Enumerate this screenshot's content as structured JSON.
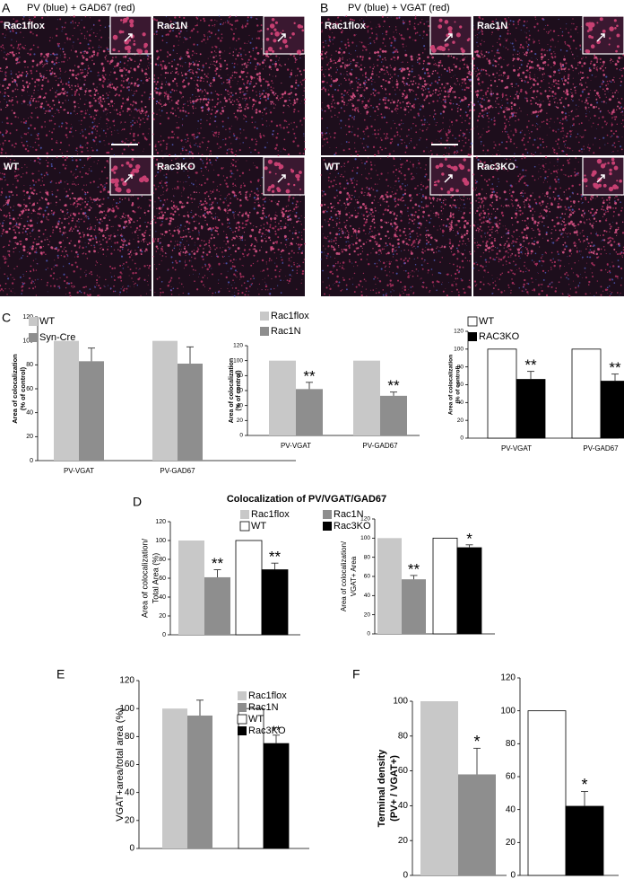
{
  "figure": {
    "panel_labels": [
      "A",
      "B",
      "C",
      "D",
      "E",
      "F"
    ],
    "image_panels": [
      {
        "title": "PV (blue) + GAD67 (red)",
        "labels": [
          "Rac1flox",
          "Rac1N",
          "WT",
          "Rac3KO"
        ]
      },
      {
        "title": "PV (blue) + VGAT (red)",
        "labels": [
          "Rac1flox",
          "Rac1N",
          "WT",
          "Rac3KO"
        ]
      }
    ],
    "section_title": "Colocalization of PV/VGAT/GAD67"
  },
  "chart_data": [
    {
      "type": "bar",
      "ylabel": [
        "Area of colocalization",
        "(% of control)"
      ],
      "categories": [
        "PV-VGAT",
        "PV-GAD67"
      ],
      "series": [
        {
          "name": "WT",
          "color": "#c8c8c8",
          "values": [
            100,
            100
          ]
        },
        {
          "name": "Syn-Cre",
          "color": "#8e8e8e",
          "values": [
            83,
            81
          ],
          "errors": [
            11,
            14
          ]
        }
      ],
      "ylim": [
        0,
        120
      ],
      "yticks": [
        0,
        20,
        40,
        60,
        80,
        100,
        120
      ]
    },
    {
      "type": "bar",
      "ylabel": [
        "Area of colocalization",
        "(% of control)"
      ],
      "categories": [
        "PV-VGAT",
        "PV-GAD67"
      ],
      "series": [
        {
          "name": "Rac1flox",
          "color": "#c8c8c8",
          "values": [
            100,
            100
          ]
        },
        {
          "name": "Rac1N",
          "color": "#8e8e8e",
          "values": [
            62,
            53
          ],
          "errors": [
            9,
            5
          ],
          "significance": [
            "**",
            "**"
          ]
        }
      ],
      "ylim": [
        0,
        120
      ],
      "yticks": [
        0,
        20,
        40,
        60,
        80,
        100,
        120
      ]
    },
    {
      "type": "bar",
      "ylabel": [
        "Area of colocalization",
        "(% of control)"
      ],
      "categories": [
        "PV-VGAT",
        "PV-GAD67"
      ],
      "series": [
        {
          "name": "WT",
          "color": "#ffffff",
          "values": [
            100,
            100
          ]
        },
        {
          "name": "RAC3KO",
          "color": "#000000",
          "values": [
            66,
            64
          ],
          "errors": [
            9,
            8
          ],
          "significance": [
            "**",
            "**"
          ]
        }
      ],
      "ylim": [
        0,
        120
      ],
      "yticks": [
        0,
        20,
        40,
        60,
        80,
        100,
        120
      ]
    },
    {
      "type": "bar",
      "ylabel": [
        "Area of colocalization/",
        "Total Area (%)"
      ],
      "categories": [
        null,
        null
      ],
      "series": [
        {
          "name": "Rac1flox",
          "color": "#c8c8c8",
          "values": [
            100,
            null
          ]
        },
        {
          "name": "WT",
          "color": "#ffffff",
          "values": [
            null,
            100
          ]
        },
        {
          "name": "Rac1N",
          "color": "#8e8e8e",
          "values": [
            61,
            null
          ],
          "errors": [
            8,
            null
          ],
          "significance": [
            "**",
            null
          ]
        },
        {
          "name": "Rac3KO",
          "color": "#000000",
          "values": [
            null,
            69
          ],
          "errors": [
            null,
            7
          ],
          "significance": [
            null,
            "**"
          ]
        }
      ],
      "order": [
        0,
        2,
        1,
        3
      ],
      "ylim": [
        0,
        120
      ],
      "yticks": [
        0,
        20,
        40,
        60,
        80,
        100,
        120
      ]
    },
    {
      "type": "bar",
      "ylabel": [
        "Area of colocalization/",
        "VGAT+ Area"
      ],
      "categories": [
        null,
        null
      ],
      "series": [
        {
          "color": "#c8c8c8",
          "values": [
            100,
            null
          ]
        },
        {
          "color": "#8e8e8e",
          "values": [
            57,
            null
          ],
          "errors": [
            4,
            null
          ],
          "significance": [
            "**",
            null
          ]
        },
        {
          "color": "#ffffff",
          "values": [
            null,
            100
          ]
        },
        {
          "color": "#000000",
          "values": [
            null,
            90
          ],
          "errors": [
            null,
            3
          ],
          "significance": [
            null,
            "*"
          ]
        }
      ],
      "ylim": [
        0,
        120
      ],
      "yticks": [
        0,
        20,
        40,
        60,
        80,
        100,
        120
      ]
    },
    {
      "type": "bar",
      "ylabel": [
        "VGAT+area/total area (%)"
      ],
      "categories": [
        null,
        null
      ],
      "series": [
        {
          "name": "Rac1flox",
          "color": "#c8c8c8",
          "values": [
            100,
            null
          ]
        },
        {
          "name": "Rac1N",
          "color": "#8e8e8e",
          "values": [
            95,
            null
          ],
          "errors": [
            11,
            null
          ]
        },
        {
          "name": "WT",
          "color": "#ffffff",
          "values": [
            null,
            100
          ]
        },
        {
          "name": "Rac3KO",
          "color": "#000000",
          "values": [
            null,
            75
          ],
          "errors": [
            null,
            6
          ],
          "significance": [
            null,
            "**"
          ]
        }
      ],
      "ylim": [
        0,
        120
      ],
      "yticks": [
        0,
        20,
        40,
        60,
        80,
        100,
        120
      ]
    },
    {
      "type": "bar",
      "ylabel": [
        "Terminal density",
        "(PV+ / VGAT+)"
      ],
      "categories": [
        null
      ],
      "series": [
        {
          "color": "#c8c8c8",
          "values": [
            100
          ]
        },
        {
          "color": "#8e8e8e",
          "values": [
            58
          ],
          "errors": [
            15
          ],
          "significance": [
            "*"
          ]
        }
      ],
      "ylim": [
        0,
        100
      ],
      "yticks": [
        0,
        20,
        40,
        60,
        80,
        100
      ]
    },
    {
      "type": "bar",
      "categories": [
        null
      ],
      "series": [
        {
          "color": "#ffffff",
          "values": [
            100
          ]
        },
        {
          "color": "#000000",
          "values": [
            42
          ],
          "errors": [
            9
          ],
          "significance": [
            "*"
          ]
        }
      ],
      "ylim": [
        0,
        120
      ],
      "yticks": [
        0,
        20,
        40,
        60,
        80,
        100,
        120
      ]
    }
  ]
}
